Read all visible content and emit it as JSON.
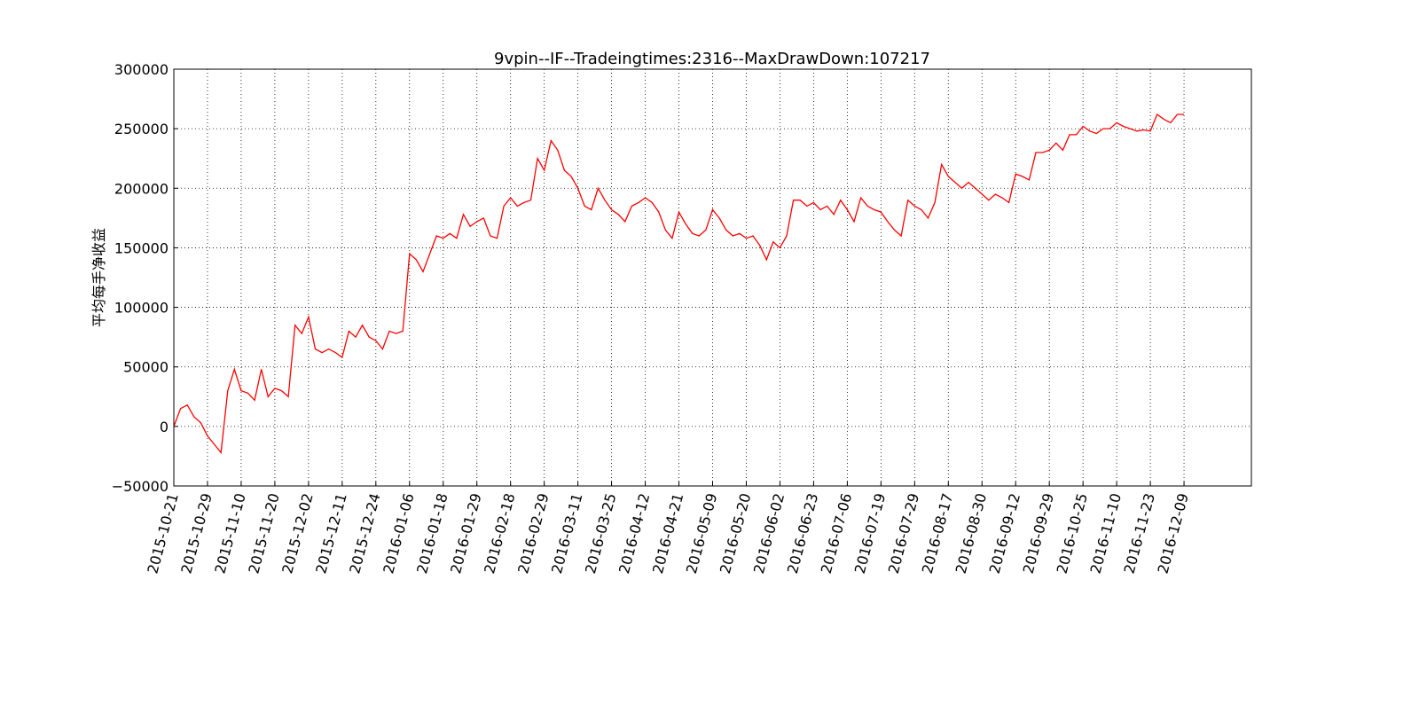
{
  "chart_data": {
    "type": "line",
    "title": "9vpin--IF--Tradeingtimes:2316--MaxDrawDown:107217",
    "y_label": "平均每手净收益",
    "color": "#ff0000",
    "grid": true,
    "values": [
      0,
      15000,
      18000,
      8000,
      3000,
      -8000,
      -15000,
      -22000,
      30000,
      48000,
      30000,
      28000,
      22000,
      48000,
      25000,
      32000,
      30000,
      25000,
      85000,
      78000,
      92000,
      65000,
      62000,
      65000,
      62000,
      58000,
      80000,
      75000,
      85000,
      75000,
      72000,
      65000,
      80000,
      78000,
      80000,
      145000,
      140000,
      130000,
      145000,
      160000,
      158000,
      162000,
      158000,
      178000,
      168000,
      172000,
      175000,
      160000,
      158000,
      185000,
      192000,
      185000,
      188000,
      190000,
      225000,
      215000,
      240000,
      232000,
      215000,
      210000,
      200000,
      185000,
      182000,
      200000,
      190000,
      182000,
      178000,
      172000,
      185000,
      188000,
      192000,
      188000,
      180000,
      165000,
      158000,
      180000,
      170000,
      162000,
      160000,
      165000,
      182000,
      175000,
      165000,
      160000,
      162000,
      158000,
      160000,
      152000,
      140000,
      155000,
      150000,
      160000,
      190000,
      190000,
      185000,
      188000,
      182000,
      185000,
      178000,
      190000,
      182000,
      172000,
      192000,
      185000,
      182000,
      180000,
      172000,
      165000,
      160000,
      190000,
      185000,
      182000,
      175000,
      188000,
      220000,
      210000,
      205000,
      200000,
      205000,
      200000,
      195000,
      190000,
      195000,
      192000,
      188000,
      212000,
      210000,
      207000,
      230000,
      230000,
      232000,
      238000,
      232000,
      245000,
      245000,
      252000,
      248000,
      246000,
      250000,
      250000,
      255000,
      252000,
      250000,
      248000,
      249000,
      248000,
      262000,
      258000,
      255000,
      262000,
      262000
    ],
    "xlim": [
      0,
      160
    ],
    "xticks": [
      {
        "value": 0,
        "label": "2015-10-21"
      },
      {
        "value": 5,
        "label": "2015-10-29"
      },
      {
        "value": 10,
        "label": "2015-11-10"
      },
      {
        "value": 15,
        "label": "2015-11-20"
      },
      {
        "value": 20,
        "label": "2015-12-02"
      },
      {
        "value": 25,
        "label": "2015-12-11"
      },
      {
        "value": 30,
        "label": "2015-12-24"
      },
      {
        "value": 35,
        "label": "2016-01-06"
      },
      {
        "value": 40,
        "label": "2016-01-18"
      },
      {
        "value": 45,
        "label": "2016-01-29"
      },
      {
        "value": 50,
        "label": "2016-02-18"
      },
      {
        "value": 55,
        "label": "2016-02-29"
      },
      {
        "value": 60,
        "label": "2016-03-11"
      },
      {
        "value": 65,
        "label": "2016-03-25"
      },
      {
        "value": 70,
        "label": "2016-04-12"
      },
      {
        "value": 75,
        "label": "2016-04-21"
      },
      {
        "value": 80,
        "label": "2016-05-09"
      },
      {
        "value": 85,
        "label": "2016-05-20"
      },
      {
        "value": 90,
        "label": "2016-06-02"
      },
      {
        "value": 95,
        "label": "2016-06-23"
      },
      {
        "value": 100,
        "label": "2016-07-06"
      },
      {
        "value": 105,
        "label": "2016-07-19"
      },
      {
        "value": 110,
        "label": "2016-07-29"
      },
      {
        "value": 115,
        "label": "2016-08-17"
      },
      {
        "value": 120,
        "label": "2016-08-30"
      },
      {
        "value": 125,
        "label": "2016-09-12"
      },
      {
        "value": 130,
        "label": "2016-09-29"
      },
      {
        "value": 135,
        "label": "2016-10-25"
      },
      {
        "value": 140,
        "label": "2016-11-10"
      },
      {
        "value": 145,
        "label": "2016-11-23"
      },
      {
        "value": 150,
        "label": "2016-12-09"
      }
    ],
    "ylim": [
      -50000,
      300000
    ],
    "yticks": [
      {
        "value": -50000,
        "label": "−50000"
      },
      0,
      50000,
      100000,
      150000,
      200000,
      250000,
      300000
    ]
  }
}
